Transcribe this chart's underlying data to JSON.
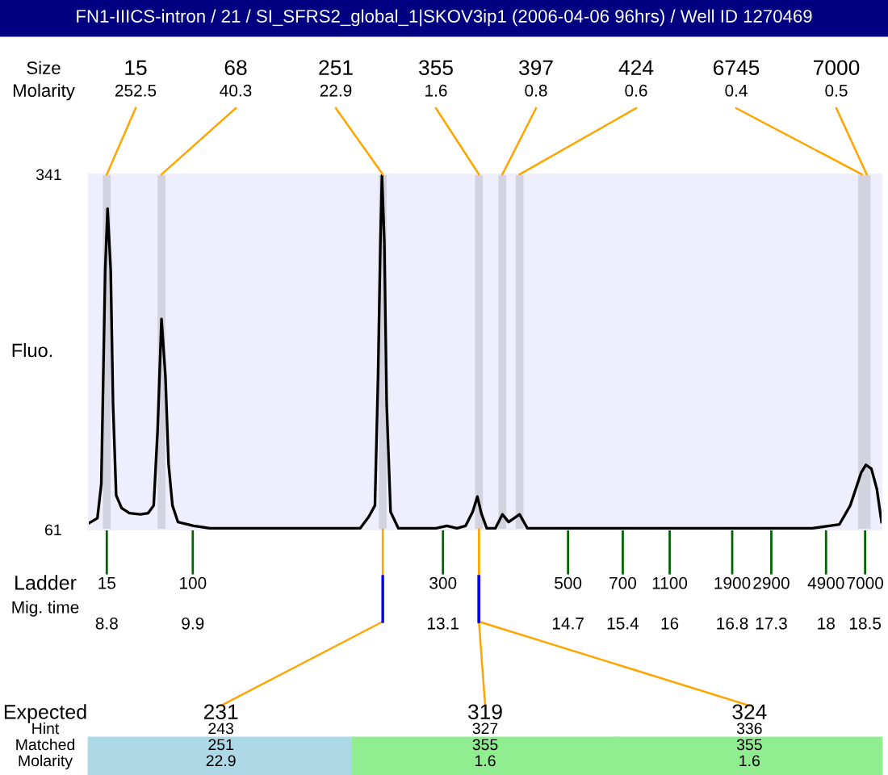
{
  "chart_data": [
    {
      "type": "other",
      "title": "FN1-IIICS-intron / 21 / SI_SFRS2_global_1|SKOV3ip1 (2006-04-06 96hrs) / Well ID 1270469",
      "annotations": [
        "Size",
        "Molarity",
        "15",
        "252.5",
        "68",
        "40.3",
        "251",
        "22.9",
        "355",
        "1.6",
        "397",
        "0.8",
        "424",
        "0.6",
        "6745",
        "0.4",
        "7000",
        "0.5"
      ]
    },
    {
      "type": "line",
      "ylabel": "Fluo.",
      "x": [
        8.57,
        8.68,
        8.73,
        8.78,
        8.81,
        8.85,
        8.88,
        8.92,
        8.99,
        9.09,
        9.23,
        9.33,
        9.4,
        9.45,
        9.5,
        9.55,
        9.59,
        9.64,
        9.71,
        9.91,
        10.12,
        12.04,
        12.15,
        12.23,
        12.27,
        12.3,
        12.32,
        12.35,
        12.38,
        12.43,
        12.53,
        13.01,
        13.15,
        13.28,
        13.39,
        13.48,
        13.54,
        13.59,
        13.66,
        13.77,
        13.86,
        13.94,
        14.08,
        14.18,
        17.82,
        18.17,
        18.31,
        18.45,
        18.51,
        18.58,
        18.65,
        18.71
      ],
      "series": [
        {
          "color": "#000000",
          "values": [
            66,
            70,
            97,
            266,
            314,
            266,
            160,
            88,
            78,
            74,
            73,
            74,
            80,
            139,
            227,
            182,
            113,
            80,
            67,
            64,
            62,
            62,
            71,
            80,
            182,
            288,
            340,
            288,
            160,
            75,
            62,
            62,
            64,
            62,
            64,
            75,
            87,
            74,
            62,
            62,
            73,
            67,
            73,
            62,
            62,
            65,
            80,
            106,
            112,
            109,
            93,
            67
          ]
        }
      ],
      "xlim": [
        8.57,
        18.71
      ],
      "ylim": [
        61,
        341
      ],
      "yticks": [
        61,
        341
      ],
      "xticks": [
        8.8,
        9.9,
        13.1,
        14.7,
        15.4,
        16,
        16.8,
        17.3,
        18,
        18.5
      ],
      "bands": [
        {
          "axis": "x",
          "from": 8.75,
          "to": 8.85,
          "color": "#d3d3e0"
        },
        {
          "axis": "x",
          "from": 9.45,
          "to": 9.55,
          "color": "#d3d3e0"
        },
        {
          "axis": "x",
          "from": 12.28,
          "to": 12.38,
          "color": "#d3d3e0"
        },
        {
          "axis": "x",
          "from": 13.51,
          "to": 13.61,
          "color": "#d3d3e0"
        },
        {
          "axis": "x",
          "from": 13.81,
          "to": 13.91,
          "color": "#d3d3e0"
        },
        {
          "axis": "x",
          "from": 14.03,
          "to": 14.13,
          "color": "#d3d3e0"
        },
        {
          "axis": "x",
          "from": 18.41,
          "to": 18.51,
          "color": "#d3d3e0"
        },
        {
          "axis": "x",
          "from": 18.47,
          "to": 18.57,
          "color": "#d3d3e0"
        }
      ],
      "annotations": [
        "Ladder",
        "Mig. time",
        "15",
        "100",
        "300",
        "500",
        "700",
        "1100",
        "1900",
        "2900",
        "4900",
        "7000"
      ]
    },
    {
      "type": "other",
      "colors": [
        "#add8e6",
        "#90ee90",
        "#90ee90"
      ],
      "annotations": [
        "Expected",
        "Hint",
        "Matched",
        "Molarity",
        "231",
        "243",
        "251",
        "22.9",
        "319",
        "327",
        "355",
        "1.6",
        "324",
        "336",
        "355",
        "1.6"
      ]
    }
  ]
}
